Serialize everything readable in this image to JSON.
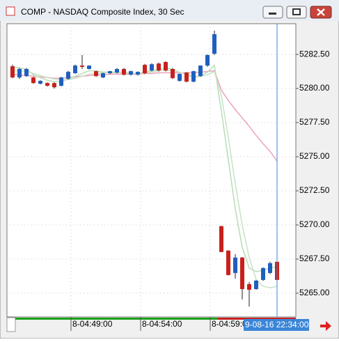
{
  "window_title": "COMP - NASDAQ Composite Index, 30 Sec",
  "chart_data": {
    "type": "candlestick",
    "open": [
      5281.63,
      5280.81,
      5280.91,
      5280.81,
      5280.35,
      5280.4,
      5280.4,
      5280.2,
      5280.71,
      5281.12,
      5281.68,
      5281.43,
      5281.27,
      5280.81,
      5281.12,
      5281.17,
      5281.43,
      5281.02,
      5281.02,
      5281.73,
      5281.32,
      5281.83,
      5281.94,
      5281.43,
      5280.56,
      5281.17,
      5280.5,
      5280.91,
      5281.68,
      5282.55,
      5269.91,
      5268.12,
      5266.48,
      5267.61,
      5265.66,
      5265.3,
      5265.97,
      5266.48,
      5267.3
    ],
    "high": [
      5281.75,
      5281.5,
      5281.5,
      5280.85,
      5280.6,
      5280.45,
      5280.45,
      5280.85,
      5281.3,
      5281.75,
      5282.45,
      5281.7,
      5281.3,
      5281.15,
      5281.3,
      5281.5,
      5281.5,
      5281.3,
      5281.25,
      5281.8,
      5281.85,
      5281.9,
      5282.0,
      5281.5,
      5281.1,
      5281.2,
      5281.3,
      5281.7,
      5282.5,
      5284.24,
      5269.95,
      5268.15,
      5267.86,
      5267.65,
      5265.82,
      5265.95,
      5266.9,
      5267.3,
      5267.4
    ],
    "low": [
      5280.75,
      5280.7,
      5280.85,
      5280.35,
      5280.3,
      5280.15,
      5279.99,
      5280.15,
      5280.65,
      5281.07,
      5281.43,
      5281.4,
      5280.85,
      5280.76,
      5281.05,
      5281.1,
      5280.95,
      5280.95,
      5280.95,
      5281.05,
      5281.25,
      5281.25,
      5281.25,
      5280.7,
      5280.5,
      5280.45,
      5280.45,
      5280.85,
      5281.6,
      5282.45,
      5268.0,
      5266.3,
      5266.07,
      5264.54,
      5264.02,
      5265.25,
      5265.9,
      5266.4,
      5265.9
    ],
    "close": [
      5280.81,
      5281.43,
      5281.43,
      5280.4,
      5280.56,
      5280.2,
      5280.09,
      5280.81,
      5281.22,
      5281.68,
      5281.58,
      5281.68,
      5280.91,
      5281.12,
      5281.27,
      5281.43,
      5281.02,
      5281.27,
      5281.22,
      5281.12,
      5281.78,
      5281.32,
      5281.32,
      5280.76,
      5281.07,
      5280.5,
      5281.27,
      5281.68,
      5282.45,
      5283.98,
      5268.02,
      5266.33,
      5267.61,
      5265.3,
      5265.25,
      5265.92,
      5266.84,
      5267.2,
      5265.97
    ],
    "up_color": "#1f5fbf",
    "down_color": "#c8201c",
    "series": [
      {
        "color": "#f0a0b8",
        "values": [
          5281.05,
          5281.0,
          5280.95,
          5280.9,
          5280.85,
          5280.8,
          5280.75,
          5280.75,
          5280.8,
          5280.85,
          5280.9,
          5280.95,
          5281.0,
          5281.0,
          5281.05,
          5281.05,
          5281.05,
          5281.05,
          5281.05,
          5281.1,
          5281.1,
          5281.15,
          5281.15,
          5281.15,
          5281.15,
          5281.15,
          5281.15,
          5281.2,
          5281.25,
          5281.3,
          5279.89,
          5279.12,
          5278.46,
          5277.84,
          5277.23,
          5276.56,
          5275.95,
          5275.39,
          5274.67
        ]
      },
      {
        "color": "#b8dcb8",
        "values": [
          5281.6,
          5281.5,
          5281.4,
          5281.0,
          5280.8,
          5280.6,
          5280.5,
          5280.5,
          5280.7,
          5280.9,
          5281.1,
          5281.3,
          5281.3,
          5281.2,
          5281.2,
          5281.2,
          5281.2,
          5281.1,
          5281.1,
          5281.2,
          5281.3,
          5281.4,
          5281.5,
          5281.4,
          5281.2,
          5281.0,
          5280.8,
          5280.9,
          5281.2,
          5281.7,
          5278.35,
          5274.77,
          5271.19,
          5268.37,
          5266.84,
          5266.58,
          5266.69,
          5266.84,
          5266.94
        ]
      },
      {
        "color": "#c6e2c6",
        "values": [
          5281.3,
          5281.3,
          5281.25,
          5281.1,
          5280.95,
          5280.8,
          5280.7,
          5280.65,
          5280.65,
          5280.75,
          5280.9,
          5281.05,
          5281.1,
          5281.15,
          5281.15,
          5281.15,
          5281.15,
          5281.1,
          5281.1,
          5281.15,
          5281.2,
          5281.3,
          5281.35,
          5281.3,
          5281.2,
          5281.05,
          5280.9,
          5280.9,
          5281.0,
          5281.25,
          5279.5,
          5276.4,
          5273.0,
          5270.0,
          5267.6,
          5266.0,
          5265.5,
          5265.4,
          5265.5
        ]
      }
    ],
    "xlim": [
      -0.8,
      40.7
    ],
    "xticks": [
      {
        "value": 8.4,
        "label": "8-04:49:00"
      },
      {
        "value": 18.4,
        "label": "8-04:54:00"
      },
      {
        "value": 28.4,
        "label": "8-04:59:0"
      }
    ],
    "ylim": [
      5263.26,
      5284.75
    ],
    "yticks": [
      {
        "value": 5265,
        "label": "5265.00"
      },
      {
        "value": 5267.5,
        "label": "5267.50"
      },
      {
        "value": 5270,
        "label": "5270.00"
      },
      {
        "value": 5272.5,
        "label": "5272.50"
      },
      {
        "value": 5275,
        "label": "5275.00"
      },
      {
        "value": 5277.5,
        "label": "5277.50"
      },
      {
        "value": 5280,
        "label": "5280.00"
      },
      {
        "value": 5282.5,
        "label": "5282.50"
      }
    ],
    "grid": true,
    "crosshair": {
      "x": 38,
      "label": "9-08-16 22:34:00",
      "color": "#3a86d8"
    }
  }
}
